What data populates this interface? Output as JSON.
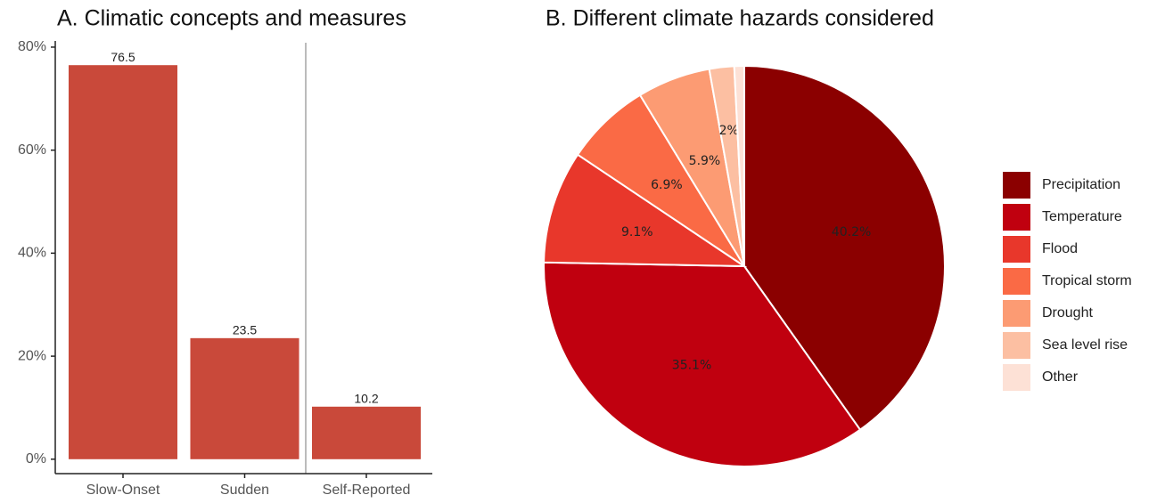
{
  "chart_data": [
    {
      "type": "bar",
      "title": "A. Climatic concepts and measures",
      "categories": [
        "Slow-Onset",
        "Sudden",
        "Self-Reported"
      ],
      "values": [
        76.5,
        23.5,
        10.2
      ],
      "color": "#c9493a",
      "ylim": [
        -2.8,
        81.2
      ],
      "yticks": [
        {
          "value": 0,
          "label": "0%"
        },
        {
          "value": 20,
          "label": "20%"
        },
        {
          "value": 40,
          "label": "40%"
        },
        {
          "value": 60,
          "label": "60%"
        },
        {
          "value": 80,
          "label": "80%"
        }
      ]
    },
    {
      "type": "pie",
      "title": "B. Different climate hazards considered",
      "categories": [
        "Precipitation",
        "Temperature",
        "Flood",
        "Tropical storm",
        "Drought",
        "Sea level rise",
        "Other"
      ],
      "values": [
        40.2,
        35.1,
        9.1,
        6.9,
        5.9,
        2,
        0.8
      ],
      "value_labels": [
        "40.2%",
        "35.1%",
        "9.1%",
        "6.9%",
        "5.9%",
        "2%",
        null
      ],
      "colors": [
        "#8b0000",
        "#c0000f",
        "#e8372b",
        "#fa6a45",
        "#fc9b73",
        "#fcbfa2",
        "#fde1d6"
      ]
    }
  ]
}
